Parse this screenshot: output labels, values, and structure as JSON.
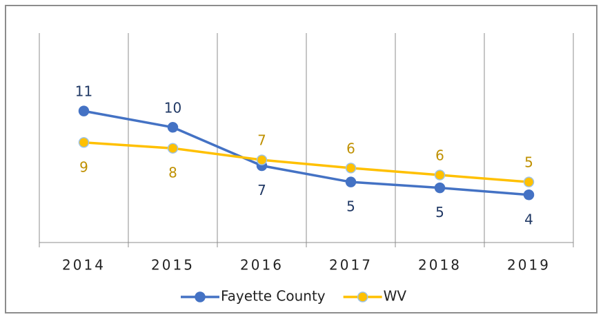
{
  "chart_data": {
    "type": "line",
    "categories": [
      "2014",
      "2015",
      "2016",
      "2017",
      "2018",
      "2019"
    ],
    "series": [
      {
        "name": "Fayette County",
        "color": "#4472c4",
        "label_color": "#203864",
        "values": [
          11.3,
          9.9,
          6.6,
          5.2,
          4.7,
          4.1
        ],
        "value_labels": [
          "11",
          "10",
          "7",
          "5",
          "5",
          "4"
        ]
      },
      {
        "name": "WV",
        "color": "#ffc000",
        "label_color": "#bf9000",
        "values": [
          8.6,
          8.1,
          7.1,
          6.4,
          5.8,
          5.2
        ],
        "value_labels": [
          "9",
          "8",
          "7",
          "6",
          "6",
          "5"
        ]
      }
    ],
    "ylim": [
      0,
      18
    ],
    "grid": true,
    "legend": "bottom"
  }
}
